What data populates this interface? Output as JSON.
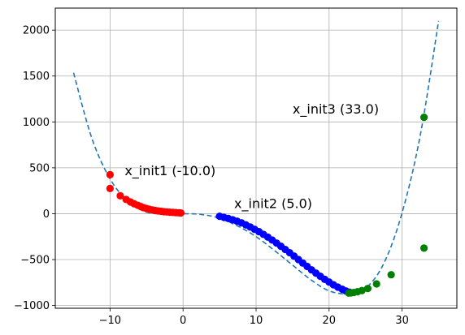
{
  "chart_data": {
    "type": "scatter",
    "title": "",
    "xlabel": "",
    "ylabel": "",
    "xlim": [
      -17.5,
      37.5
    ],
    "ylim": [
      -1030,
      2240
    ],
    "grid": true,
    "x_ticks": [
      -10,
      0,
      10,
      20,
      30
    ],
    "y_ticks": [
      -1000,
      -500,
      0,
      500,
      1000,
      1500,
      2000
    ],
    "colors": {
      "curve": "#1f77b4",
      "init1": "#ff0000",
      "init2": "#0000ff",
      "init3": "#008000"
    },
    "curve": {
      "style": "dashed",
      "x_range": [
        -15,
        35
      ],
      "x": [
        -15,
        -12.5,
        -10,
        -7.5,
        -5,
        -2.5,
        0,
        2.5,
        5,
        7.5,
        10,
        12.5,
        15,
        17.5,
        20,
        22.5,
        25,
        27.5,
        30,
        32.5,
        35
      ],
      "y": [
        1536,
        824,
        380,
        133,
        17,
        -0.5,
        0,
        -8,
        -50,
        -135,
        -250,
        -400,
        -560,
        -720,
        -840,
        -872,
        -812,
        -540,
        10,
        860,
        2100
      ]
    },
    "series": [
      {
        "color": "red",
        "points": [
          [
            -10,
            425
          ],
          [
            -10,
            275
          ],
          [
            -8.6,
            195
          ],
          [
            -7.8,
            155
          ],
          [
            -7.2,
            128
          ],
          [
            -6.7,
            108
          ],
          [
            -6.2,
            92
          ],
          [
            -5.8,
            78
          ],
          [
            -5.4,
            66
          ],
          [
            -5.0,
            56
          ],
          [
            -4.6,
            48
          ],
          [
            -4.2,
            41
          ],
          [
            -3.8,
            35
          ],
          [
            -3.4,
            30
          ],
          [
            -3.0,
            26
          ],
          [
            -2.6,
            22
          ],
          [
            -2.2,
            19
          ],
          [
            -1.8,
            16
          ],
          [
            -1.4,
            14
          ],
          [
            -1.0,
            12
          ],
          [
            -0.6,
            10
          ],
          [
            -0.3,
            8
          ]
        ]
      },
      {
        "color": "blue",
        "points": [
          [
            5.0,
            -28
          ],
          [
            5.6,
            -40
          ],
          [
            6.2,
            -52
          ],
          [
            6.8,
            -66
          ],
          [
            7.4,
            -82
          ],
          [
            8.0,
            -100
          ],
          [
            8.6,
            -122
          ],
          [
            9.2,
            -145
          ],
          [
            9.8,
            -170
          ],
          [
            10.4,
            -196
          ],
          [
            11.0,
            -225
          ],
          [
            11.6,
            -255
          ],
          [
            12.2,
            -287
          ],
          [
            12.8,
            -320
          ],
          [
            13.4,
            -355
          ],
          [
            14.0,
            -390
          ],
          [
            14.6,
            -425
          ],
          [
            15.2,
            -462
          ],
          [
            15.8,
            -500
          ],
          [
            16.4,
            -538
          ],
          [
            17.0,
            -575
          ],
          [
            17.6,
            -612
          ],
          [
            18.2,
            -648
          ],
          [
            18.8,
            -682
          ],
          [
            19.4,
            -715
          ],
          [
            20.0,
            -745
          ],
          [
            20.6,
            -775
          ],
          [
            21.2,
            -800
          ],
          [
            21.8,
            -823
          ],
          [
            22.3,
            -842
          ],
          [
            22.8,
            -855
          ]
        ]
      },
      {
        "color": "green",
        "points": [
          [
            33,
            1050
          ],
          [
            33,
            -375
          ],
          [
            28.5,
            -665
          ],
          [
            26.5,
            -765
          ],
          [
            25.3,
            -815
          ],
          [
            24.5,
            -838
          ],
          [
            23.9,
            -850
          ],
          [
            23.4,
            -858
          ],
          [
            23.0,
            -862
          ],
          [
            22.7,
            -865
          ]
        ]
      }
    ],
    "annotations": [
      {
        "text": "x_init1 (-10.0)",
        "x": -8.0,
        "y": 420
      },
      {
        "text": "x_init2 (5.0)",
        "x": 7.0,
        "y": 60
      },
      {
        "text": "x_init3 (33.0)",
        "x": 15.0,
        "y": 1090
      }
    ]
  }
}
